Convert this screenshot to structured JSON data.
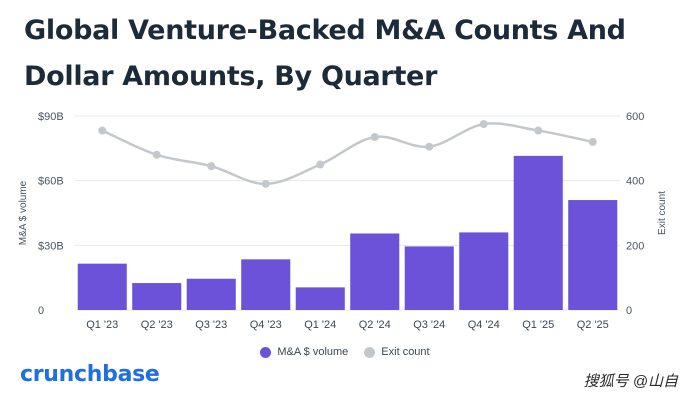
{
  "title_line1": "Global Venture-Backed M&A Counts And",
  "title_line2": "Dollar Amounts, By Quarter",
  "brand": "crunchbase",
  "watermark": "搜狐号 @山自",
  "colors": {
    "bar": "#6b52d9",
    "line": "#c4c8cc",
    "grid": "#e6e8eb",
    "brand": "#1e6fe0"
  },
  "chart_data": {
    "type": "bar+line",
    "categories": [
      "Q1 '23",
      "Q2 '23",
      "Q3 '23",
      "Q4 '23",
      "Q1 '24",
      "Q2 '24",
      "Q3 '24",
      "Q4 '24",
      "Q1 '25",
      "Q2 '25"
    ],
    "series": [
      {
        "name": "M&A $ volume",
        "type": "bar",
        "axis": "left",
        "values": [
          21.5,
          12.5,
          14.5,
          23.5,
          10.5,
          35.5,
          29.5,
          36,
          71.5,
          51
        ],
        "color": "#6b52d9"
      },
      {
        "name": "Exit count",
        "type": "line",
        "axis": "right",
        "values": [
          555,
          480,
          445,
          390,
          450,
          535,
          505,
          575,
          555,
          520
        ],
        "color": "#c4c8cc"
      }
    ],
    "left_axis": {
      "label": "M&A $ volume",
      "ticks": [
        0,
        30,
        60,
        90
      ],
      "tick_labels": [
        "0",
        "$30B",
        "$60B",
        "$90B"
      ],
      "range": [
        0,
        90
      ]
    },
    "right_axis": {
      "label": "Exit count",
      "ticks": [
        0,
        200,
        400,
        600
      ],
      "tick_labels": [
        "0",
        "200",
        "400",
        "600"
      ],
      "range": [
        0,
        600
      ]
    },
    "grid": true,
    "legend_position": "bottom-center"
  }
}
